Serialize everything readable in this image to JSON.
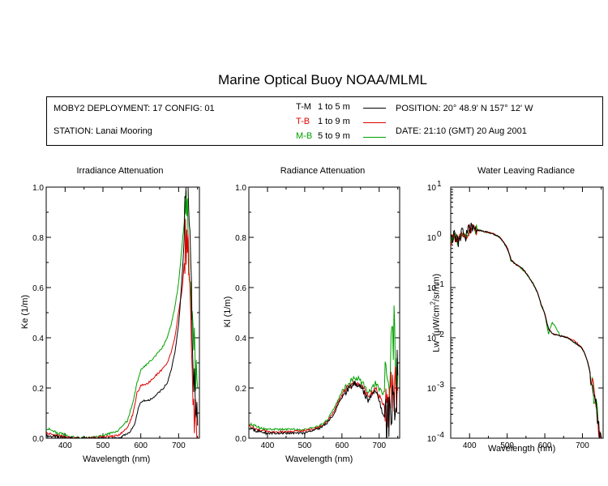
{
  "title": "Marine Optical Buoy NOAA/MLML",
  "info": {
    "deployment": "MOBY2 DEPLOYMENT: 17 CONFIG: 01",
    "station": "STATION: Lanai Mooring",
    "position": "POSITION: 20° 48.9' N   157° 12' W",
    "date": "DATE: 21:10 (GMT) 20 Aug 2001",
    "legend": [
      {
        "code": "T-M",
        "range": "1 to 5  m",
        "color": "#000000"
      },
      {
        "code": "T-B",
        "range": "1 to 9  m",
        "color": "#e00000"
      },
      {
        "code": "M-B",
        "range": "5 to 9  m",
        "color": "#00a000"
      }
    ]
  },
  "panels": {
    "p1": {
      "title": "Irradiance Attenuation",
      "xlabel": "Wavelength (nm)",
      "ylabel": "Ke  (1/m)"
    },
    "p2": {
      "title": "Radiance Attenuation",
      "xlabel": "Wavelength (nm)",
      "ylabel": "Kl  (1/m)"
    },
    "p3": {
      "title": "Water Leaving Radiance",
      "xlabel": "Wavelength (nm)",
      "ylabel": "Lw  (μW/cm²/sr/nm)"
    }
  },
  "chart_data": [
    {
      "type": "line",
      "title": "Irradiance Attenuation",
      "xlabel": "Wavelength (nm)",
      "ylabel": "Ke  (1/m)",
      "xlim": [
        350,
        755
      ],
      "ylim": [
        0,
        1.0
      ],
      "xticks": [
        400,
        500,
        600,
        700
      ],
      "yticks": [
        0.0,
        0.2,
        0.4,
        0.6,
        0.8,
        1.0
      ],
      "ytick_labels": [
        "0.0",
        "0.2",
        "0.4",
        "0.6",
        "0.8",
        "1.0"
      ],
      "series": [
        {
          "name": "T-M",
          "color": "#000000",
          "x": [
            350,
            380,
            420,
            460,
            500,
            540,
            570,
            585,
            595,
            605,
            620,
            640,
            660,
            670,
            680,
            690,
            700,
            705,
            710,
            715,
            720,
            725,
            728,
            732,
            736,
            740,
            745,
            750
          ],
          "y": [
            0.01,
            0.005,
            0.0,
            0.0,
            0.0,
            0.0,
            0.02,
            0.06,
            0.13,
            0.15,
            0.15,
            0.17,
            0.2,
            0.22,
            0.27,
            0.34,
            0.45,
            0.55,
            0.66,
            0.8,
            0.95,
            1.0,
            0.9,
            0.7,
            0.4,
            0.2,
            0.1,
            0.05
          ]
        },
        {
          "name": "T-B",
          "color": "#e00000",
          "x": [
            350,
            380,
            420,
            460,
            500,
            540,
            565,
            580,
            590,
            600,
            620,
            640,
            660,
            670,
            680,
            690,
            700,
            705,
            710,
            715,
            720,
            725,
            728,
            732,
            736,
            740,
            745,
            750
          ],
          "y": [
            0.02,
            0.01,
            0.0,
            0.0,
            0.005,
            0.01,
            0.04,
            0.1,
            0.18,
            0.21,
            0.22,
            0.25,
            0.28,
            0.3,
            0.34,
            0.4,
            0.5,
            0.55,
            0.6,
            0.7,
            0.8,
            0.78,
            0.6,
            0.4,
            0.3,
            0.15,
            0.05,
            0.0
          ]
        },
        {
          "name": "M-B",
          "color": "#00a000",
          "x": [
            350,
            380,
            420,
            460,
            500,
            540,
            565,
            580,
            590,
            600,
            620,
            640,
            660,
            670,
            680,
            690,
            700,
            705,
            710,
            715,
            720,
            725,
            728,
            732,
            736,
            740,
            745,
            750
          ],
          "y": [
            0.04,
            0.02,
            0.005,
            0.0,
            0.01,
            0.03,
            0.07,
            0.15,
            0.22,
            0.27,
            0.3,
            0.33,
            0.37,
            0.4,
            0.45,
            0.52,
            0.62,
            0.7,
            0.78,
            0.86,
            0.95,
            0.85,
            0.6,
            0.5,
            0.4,
            0.35,
            0.3,
            0.2
          ]
        }
      ]
    },
    {
      "type": "line",
      "title": "Radiance Attenuation",
      "xlabel": "Wavelength (nm)",
      "ylabel": "Kl  (1/m)",
      "xlim": [
        350,
        755
      ],
      "ylim": [
        0,
        1.0
      ],
      "xticks": [
        400,
        500,
        600,
        700
      ],
      "yticks": [
        0.0,
        0.2,
        0.4,
        0.6,
        0.8,
        1.0
      ],
      "ytick_labels": [
        "0.0",
        "0.2",
        "0.4",
        "0.6",
        "0.8",
        "1.0"
      ],
      "series": [
        {
          "name": "T-M",
          "color": "#000000",
          "x": [
            350,
            370,
            400,
            450,
            500,
            520,
            540,
            560,
            580,
            595,
            605,
            620,
            635,
            650,
            660,
            670,
            680,
            690,
            700,
            710,
            720,
            730,
            740,
            745,
            750
          ],
          "y": [
            0.04,
            0.03,
            0.02,
            0.02,
            0.02,
            0.03,
            0.04,
            0.06,
            0.1,
            0.15,
            0.17,
            0.2,
            0.22,
            0.21,
            0.18,
            0.15,
            0.17,
            0.19,
            0.15,
            0.1,
            0.06,
            0.1,
            0.12,
            0.2,
            0.25
          ]
        },
        {
          "name": "T-B",
          "color": "#e00000",
          "x": [
            350,
            370,
            400,
            450,
            500,
            520,
            540,
            560,
            580,
            595,
            605,
            620,
            635,
            650,
            660,
            670,
            680,
            690,
            700,
            710,
            720,
            730,
            740,
            745,
            750
          ],
          "y": [
            0.05,
            0.035,
            0.025,
            0.025,
            0.03,
            0.035,
            0.045,
            0.065,
            0.11,
            0.16,
            0.18,
            0.21,
            0.22,
            0.21,
            0.19,
            0.17,
            0.18,
            0.2,
            0.17,
            0.13,
            0.12,
            0.14,
            0.18,
            0.2,
            0.19
          ]
        },
        {
          "name": "M-B",
          "color": "#00a000",
          "x": [
            350,
            370,
            400,
            450,
            500,
            520,
            540,
            560,
            580,
            595,
            605,
            620,
            635,
            650,
            660,
            670,
            680,
            690,
            700,
            710,
            720,
            730,
            740,
            745,
            750
          ],
          "y": [
            0.06,
            0.045,
            0.035,
            0.035,
            0.035,
            0.04,
            0.05,
            0.07,
            0.12,
            0.17,
            0.19,
            0.22,
            0.24,
            0.23,
            0.21,
            0.18,
            0.2,
            0.22,
            0.2,
            0.18,
            0.2,
            0.3,
            0.45,
            0.3,
            0.25
          ]
        }
      ]
    },
    {
      "type": "line",
      "title": "Water Leaving Radiance",
      "xlabel": "Wavelength (nm)",
      "ylabel": "Lw  (μW/cm²/sr/nm)",
      "scale": "log",
      "xlim": [
        350,
        755
      ],
      "ylim": [
        0.0001,
        10
      ],
      "xticks": [
        400,
        500,
        600,
        700
      ],
      "ytick_labels": [
        "10^1",
        "10^0",
        "10^-1",
        "10^-2",
        "10^-3",
        "10^-4"
      ],
      "series": [
        {
          "name": "T-M",
          "color": "#000000",
          "x": [
            350,
            360,
            370,
            380,
            390,
            400,
            410,
            420,
            440,
            460,
            480,
            500,
            510,
            520,
            540,
            560,
            580,
            590,
            600,
            605,
            610,
            620,
            640,
            660,
            680,
            700,
            710,
            720,
            730,
            740,
            745,
            750
          ],
          "y": [
            0.9,
            1.2,
            0.8,
            1.3,
            1.0,
            1.6,
            1.5,
            1.4,
            1.3,
            1.2,
            1.0,
            0.6,
            0.35,
            0.3,
            0.24,
            0.15,
            0.08,
            0.045,
            0.03,
            0.02,
            0.015,
            0.012,
            0.011,
            0.01,
            0.008,
            0.006,
            0.004,
            0.002,
            0.0008,
            0.0003,
            0.0001,
            0.0001
          ]
        },
        {
          "name": "T-B",
          "color": "#e00000",
          "x": [
            350,
            360,
            370,
            380,
            390,
            400,
            410,
            420,
            440,
            460,
            480,
            500,
            510,
            520,
            540,
            560,
            580,
            590,
            600,
            605,
            610,
            620,
            640,
            660,
            680,
            700,
            710,
            720,
            730,
            740,
            745,
            750
          ],
          "y": [
            0.85,
            1.1,
            0.85,
            1.25,
            1.0,
            1.55,
            1.45,
            1.4,
            1.3,
            1.2,
            1.0,
            0.62,
            0.36,
            0.3,
            0.24,
            0.15,
            0.08,
            0.046,
            0.03,
            0.021,
            0.015,
            0.012,
            0.011,
            0.01,
            0.0085,
            0.0062,
            0.0041,
            0.0021,
            0.0009,
            0.0003,
            0.0001,
            0.0001
          ]
        },
        {
          "name": "M-B",
          "color": "#00a000",
          "x": [
            350,
            360,
            370,
            380,
            390,
            400,
            410,
            420,
            440,
            460,
            480,
            500,
            510,
            520,
            540,
            560,
            580,
            590,
            600,
            605,
            610,
            620,
            640,
            660,
            680,
            700,
            710,
            720,
            730,
            740,
            745,
            750
          ],
          "y": [
            0.8,
            1.3,
            0.7,
            1.4,
            0.9,
            1.7,
            1.5,
            1.45,
            1.3,
            1.2,
            1.0,
            0.6,
            0.34,
            0.3,
            0.23,
            0.15,
            0.08,
            0.044,
            0.03,
            0.018,
            0.012,
            0.02,
            0.011,
            0.01,
            0.008,
            0.006,
            0.004,
            0.002,
            0.0008,
            0.0003,
            0.0001,
            0.0001
          ]
        }
      ]
    }
  ]
}
